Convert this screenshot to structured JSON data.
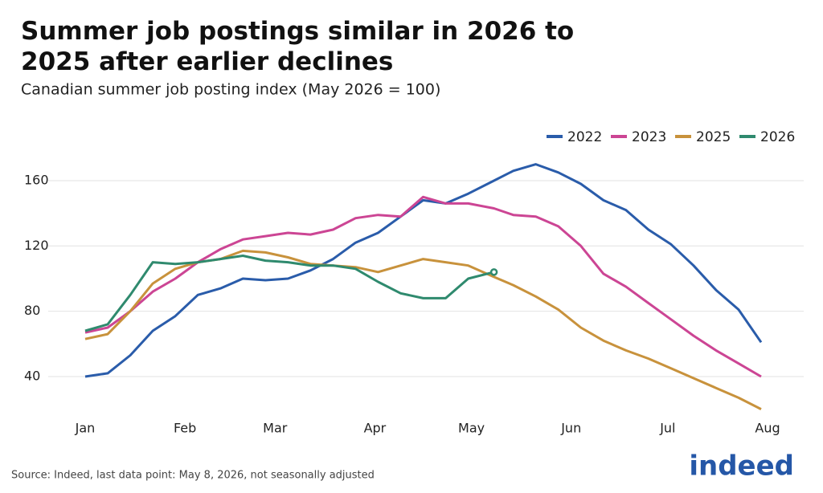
{
  "chart_data": {
    "type": "line",
    "title": "Summer job postings similar in 2026 to 2025 after earlier declines",
    "subtitle": "Canadian summer job posting index (May 2026 = 100)",
    "source": "Source: Indeed, last data point: May 8, 2026, not seasonally adjusted",
    "brand": "indeed",
    "x": [
      1,
      8,
      15,
      22,
      29,
      36,
      43,
      50,
      57,
      64,
      71,
      78,
      85,
      92,
      99,
      106,
      113,
      120,
      128,
      134,
      141,
      148,
      155,
      162,
      169,
      176,
      183,
      190,
      197,
      204,
      211
    ],
    "xlim": [
      1,
      213
    ],
    "xticks": [
      {
        "value": 1,
        "label": "Jan"
      },
      {
        "value": 32,
        "label": "Feb"
      },
      {
        "value": 60,
        "label": "Mar"
      },
      {
        "value": 91,
        "label": "Apr"
      },
      {
        "value": 121,
        "label": "May"
      },
      {
        "value": 152,
        "label": "Jun"
      },
      {
        "value": 182,
        "label": "Jul"
      },
      {
        "value": 213,
        "label": "Aug"
      }
    ],
    "ylim": [
      15,
      180
    ],
    "yticks": [
      40,
      80,
      120,
      160
    ],
    "grid": true,
    "legend": "top-right",
    "series": [
      {
        "name": "2022",
        "color": "#2a5caa",
        "values": [
          40,
          42,
          53,
          68,
          77,
          90,
          94,
          100,
          99,
          100,
          105,
          112,
          122,
          128,
          138,
          148,
          146,
          152,
          160,
          166,
          170,
          165,
          158,
          148,
          142,
          130,
          121,
          108,
          93,
          81,
          61
        ]
      },
      {
        "name": "2023",
        "color": "#cc4594",
        "values": [
          67,
          70,
          80,
          92,
          100,
          110,
          118,
          124,
          126,
          128,
          127,
          130,
          137,
          139,
          138,
          150,
          146,
          146,
          143,
          139,
          138,
          132,
          120,
          103,
          95,
          85,
          75,
          65,
          56,
          48,
          40
        ]
      },
      {
        "name": "2025",
        "color": "#c8923c",
        "values": [
          63,
          66,
          80,
          97,
          106,
          110,
          112,
          117,
          116,
          113,
          109,
          108,
          107,
          104,
          108,
          112,
          110,
          108,
          101,
          96,
          89,
          81,
          70,
          62,
          56,
          51,
          45,
          39,
          33,
          27,
          20
        ]
      },
      {
        "name": "2026",
        "color": "#2f8a6e",
        "values": [
          68,
          72,
          90,
          110,
          109,
          110,
          112,
          114,
          111,
          110,
          108,
          108,
          106,
          98,
          91,
          88,
          88,
          100,
          104,
          null,
          null,
          null,
          null,
          null,
          null,
          null,
          null,
          null,
          null,
          null,
          null
        ]
      }
    ]
  }
}
